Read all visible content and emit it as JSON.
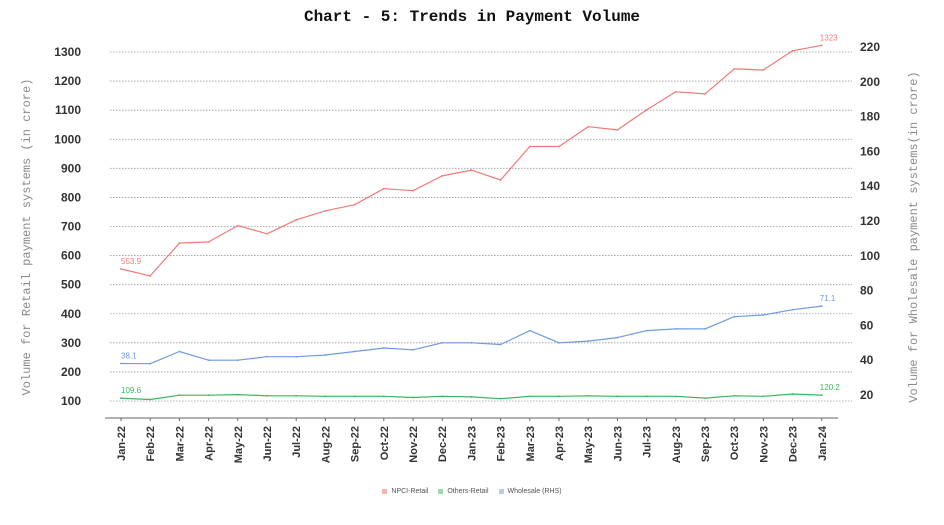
{
  "chart_data": {
    "type": "line",
    "title": "Chart - 5: Trends in Payment Volume",
    "xlabel": "",
    "ylabel": "Volume for Retail payment systems (in crore)",
    "y2label": "Volume for Wholesale payment systems(in crore)",
    "ylim": [
      100,
      1300
    ],
    "y2lim": [
      20,
      220
    ],
    "yticks": [
      100,
      200,
      300,
      400,
      500,
      600,
      700,
      800,
      900,
      1000,
      1100,
      1200,
      1300
    ],
    "y2ticks": [
      20,
      40,
      60,
      80,
      100,
      120,
      140,
      160,
      180,
      200,
      220
    ],
    "grid": true,
    "legend_position": "bottom",
    "categories": [
      "Jan-22",
      "Feb-22",
      "Mar-22",
      "Apr-22",
      "May-22",
      "Jun-22",
      "Jul-22",
      "Aug-22",
      "Sep-22",
      "Oct-22",
      "Nov-22",
      "Dec-22",
      "Jan-23",
      "Feb-23",
      "Mar-23",
      "Apr-23",
      "May-23",
      "Jun-23",
      "Jul-23",
      "Aug-23",
      "Sep-23",
      "Oct-23",
      "Nov-23",
      "Dec-23",
      "Jan-24"
    ],
    "series": [
      {
        "name": "NPCI-Retail",
        "axis": "left",
        "color": "#f07a78",
        "values": [
          553.9,
          530,
          643,
          647,
          703,
          675,
          723,
          754,
          775,
          830,
          823,
          874,
          894,
          860,
          975,
          975,
          1043,
          1032,
          1101,
          1163,
          1156,
          1242,
          1238,
          1304,
          1323
        ],
        "start_label": "553.9",
        "end_label": "1323"
      },
      {
        "name": "Others-Retail",
        "axis": "left",
        "color": "#3cb55a",
        "values": [
          109.6,
          105,
          120,
          120,
          122,
          118,
          118,
          116,
          116,
          116,
          112,
          116,
          114,
          108,
          116,
          116,
          118,
          116,
          116,
          116,
          110,
          118,
          116,
          124,
          120.2
        ],
        "start_label": "109.6",
        "end_label": "120.2"
      },
      {
        "name": "Wholesale (RHS)",
        "axis": "right",
        "color": "#6f9be3",
        "values": [
          38.1,
          38,
          45,
          40,
          40,
          42,
          42,
          43,
          45,
          47,
          46,
          50,
          50,
          49,
          57,
          50,
          51,
          53,
          57,
          58,
          58,
          65,
          66,
          69,
          71.1
        ],
        "start_label": "38.1",
        "end_label": "71.1"
      }
    ]
  }
}
